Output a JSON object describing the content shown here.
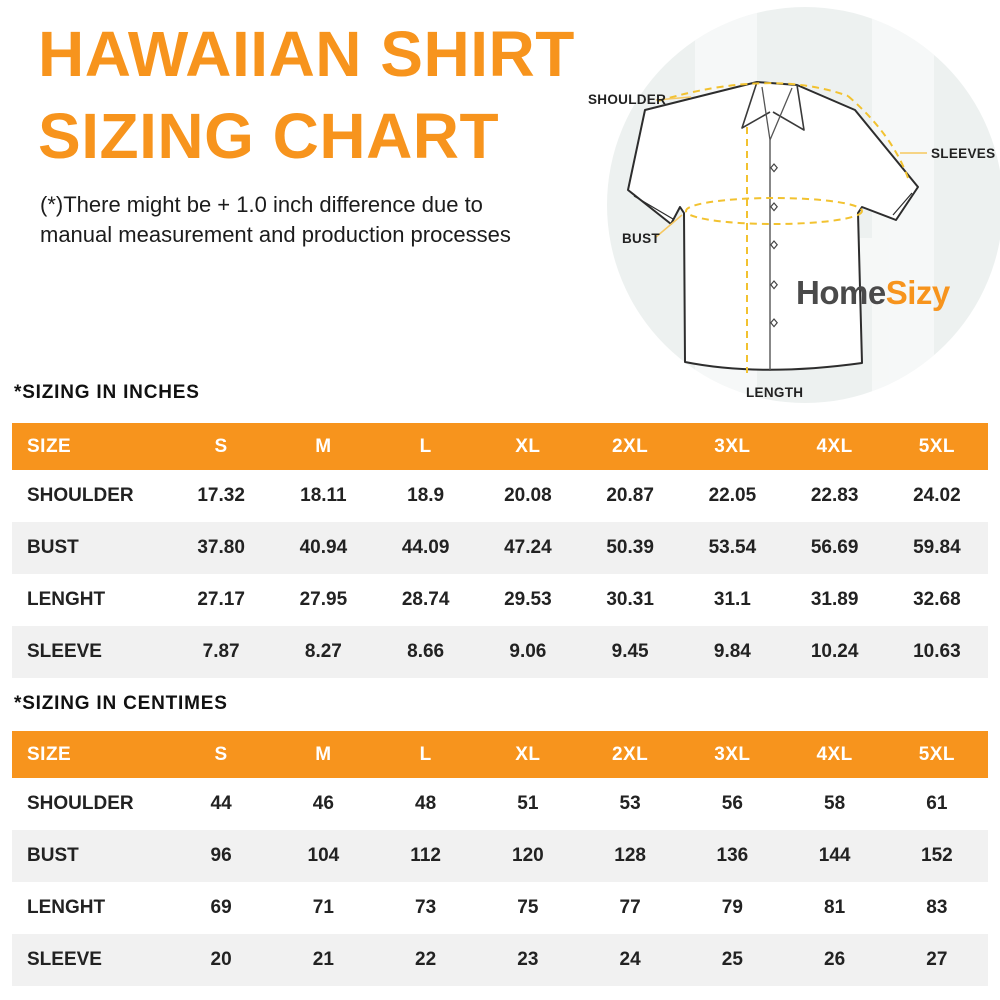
{
  "colors": {
    "accent_orange": "#F7941D",
    "row_stripe": "#F1F1F1",
    "logo_gray": "#4A4A4A",
    "dash_yellow": "#F2C230",
    "circle_background": "#EDF1F0"
  },
  "header": {
    "title_line1": "HAWAIIAN SHIRT",
    "title_line2": "SIZING CHART",
    "disclaimer_line1": "(*)There might be + 1.0 inch difference due to",
    "disclaimer_line2": "manual measurement and production processes"
  },
  "diagram": {
    "labels": {
      "shoulder": "SHOULDER",
      "sleeves": "SLEEVES",
      "bust": "BUST",
      "length": "LENGTH"
    },
    "logo": {
      "part1": "Home",
      "part2": "Sizy"
    }
  },
  "tables": [
    {
      "heading": "*SIZING IN INCHES",
      "columns": [
        "SIZE",
        "S",
        "M",
        "L",
        "XL",
        "2XL",
        "3XL",
        "4XL",
        "5XL"
      ],
      "rows": [
        {
          "label": "SHOULDER",
          "values": [
            "17.32",
            "18.11",
            "18.9",
            "20.08",
            "20.87",
            "22.05",
            "22.83",
            "24.02"
          ]
        },
        {
          "label": "BUST",
          "values": [
            "37.80",
            "40.94",
            "44.09",
            "47.24",
            "50.39",
            "53.54",
            "56.69",
            "59.84"
          ]
        },
        {
          "label": "LENGHT",
          "values": [
            "27.17",
            "27.95",
            "28.74",
            "29.53",
            "30.31",
            "31.1",
            "31.89",
            "32.68"
          ]
        },
        {
          "label": "SLEEVE",
          "values": [
            "7.87",
            "8.27",
            "8.66",
            "9.06",
            "9.45",
            "9.84",
            "10.24",
            "10.63"
          ]
        }
      ]
    },
    {
      "heading": "*SIZING IN CENTIMES",
      "columns": [
        "SIZE",
        "S",
        "M",
        "L",
        "XL",
        "2XL",
        "3XL",
        "4XL",
        "5XL"
      ],
      "rows": [
        {
          "label": "SHOULDER",
          "values": [
            "44",
            "46",
            "48",
            "51",
            "53",
            "56",
            "58",
            "61"
          ]
        },
        {
          "label": "BUST",
          "values": [
            "96",
            "104",
            "112",
            "120",
            "128",
            "136",
            "144",
            "152"
          ]
        },
        {
          "label": "LENGHT",
          "values": [
            "69",
            "71",
            "73",
            "75",
            "77",
            "79",
            "81",
            "83"
          ]
        },
        {
          "label": "SLEEVE",
          "values": [
            "20",
            "21",
            "22",
            "23",
            "24",
            "25",
            "26",
            "27"
          ]
        }
      ]
    }
  ]
}
